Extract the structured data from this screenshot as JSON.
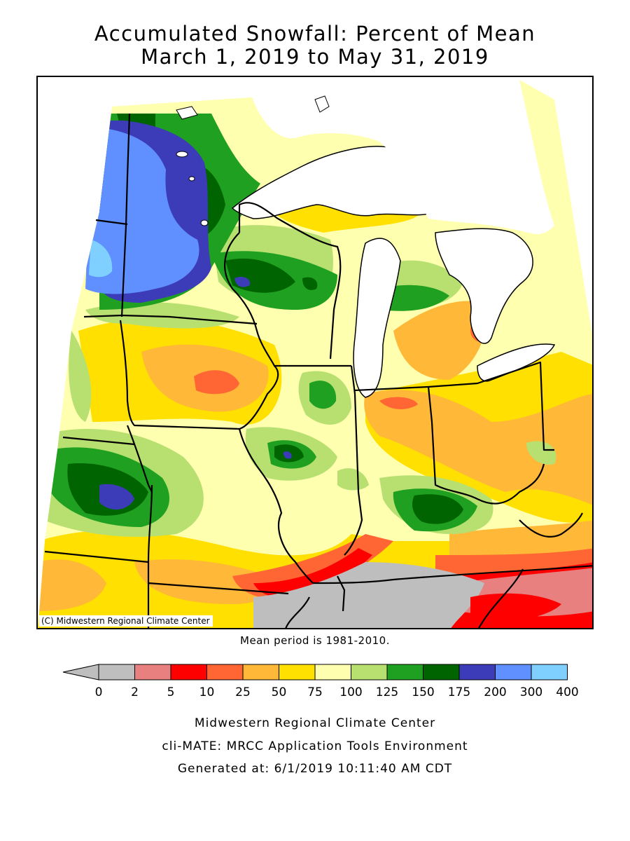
{
  "title_line1": "Accumulated Snowfall: Percent of Mean",
  "title_line2": "March 1, 2019 to May 31, 2019",
  "copyright": "(C) Midwestern Regional Climate Center",
  "mean_period": "Mean period is 1981-2010.",
  "legend": {
    "ticks": [
      "0",
      "2",
      "5",
      "10",
      "25",
      "50",
      "75",
      "100",
      "125",
      "150",
      "175",
      "200",
      "300",
      "400"
    ],
    "colors": [
      "#bebebe",
      "#e88080",
      "#ff0000",
      "#ff6633",
      "#ffb838",
      "#ffe000",
      "#ffffb0",
      "#b8e070",
      "#20a020",
      "#006400",
      "#3c3cb8",
      "#6090ff",
      "#80d0ff"
    ],
    "below_min_color": "#bebebe"
  },
  "footer": {
    "line1": "Midwestern Regional Climate Center",
    "line2": "cli-MATE: MRCC Application Tools Environment",
    "line3": "Generated at: 6/1/2019 10:11:40 AM CDT"
  }
}
